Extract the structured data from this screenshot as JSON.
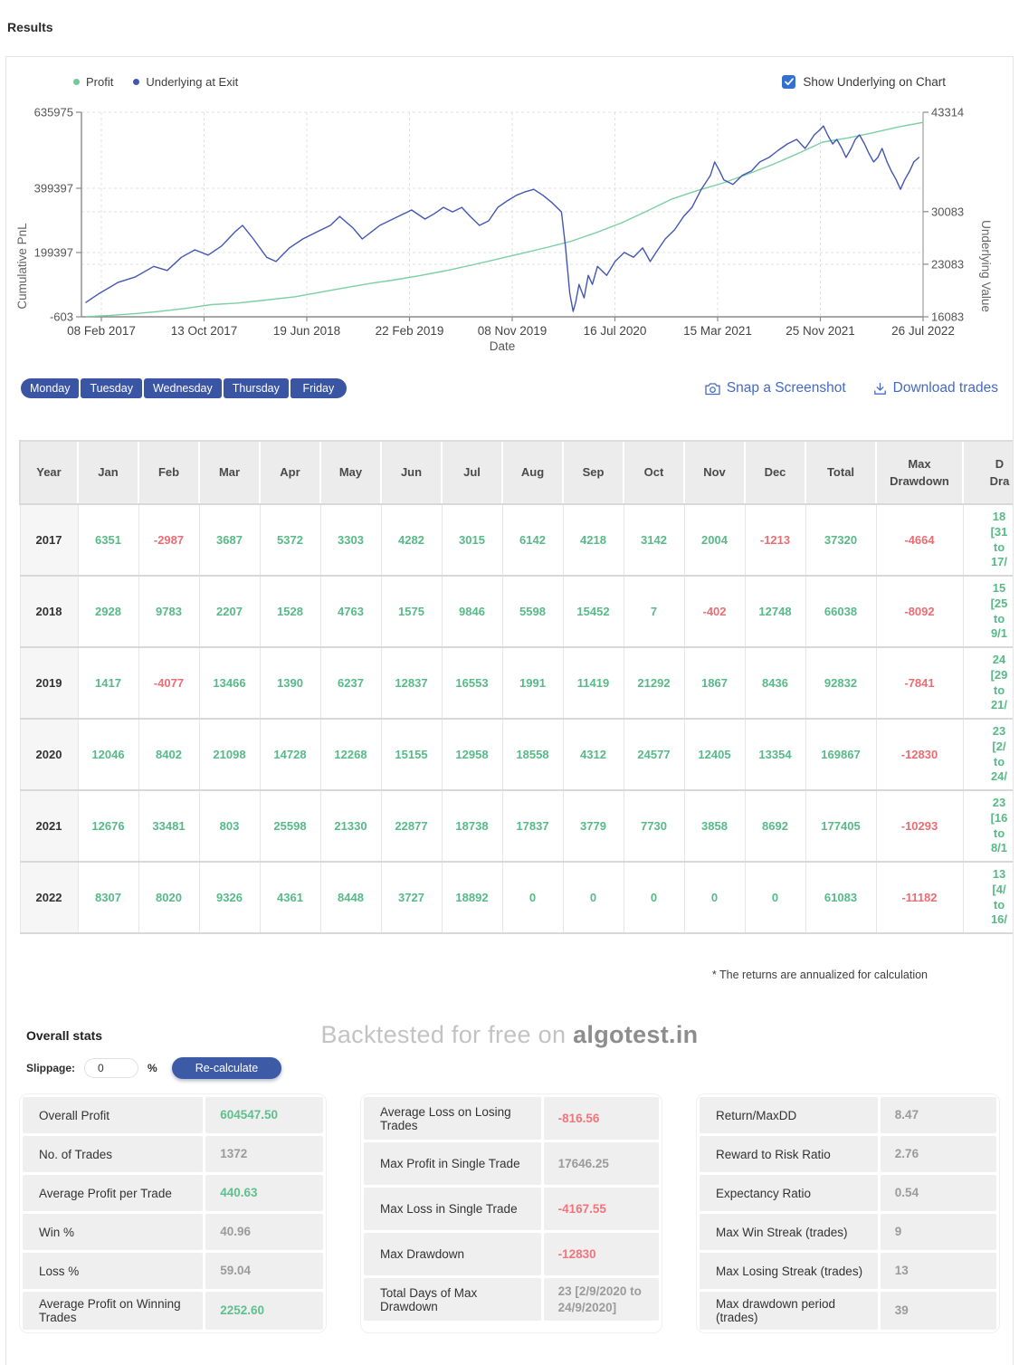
{
  "page": {
    "title": "Results"
  },
  "chart": {
    "legend": [
      {
        "label": "Profit",
        "color": "#6fcb97"
      },
      {
        "label": "Underlying at Exit",
        "color": "#4357b2"
      }
    ],
    "checkbox_label": "Show Underlying on Chart",
    "y_left": {
      "title": "Cumulative PnL",
      "ticks": [
        "635975",
        "399397",
        "199397",
        "-603"
      ]
    },
    "y_right": {
      "title": "Underlying Value",
      "ticks": [
        "43314",
        "30083",
        "23083",
        "16083"
      ]
    },
    "x": {
      "title": "Date",
      "ticks": [
        "08 Feb 2017",
        "13 Oct 2017",
        "19 Jun 2018",
        "22 Feb 2019",
        "08 Nov 2019",
        "16 Jul 2020",
        "15 Mar 2021",
        "25 Nov 2021",
        "26 Jul 2022"
      ]
    }
  },
  "chart_data": {
    "type": "line",
    "title": "",
    "xlabel": "Date",
    "x_tick_labels": [
      "08 Feb 2017",
      "13 Oct 2017",
      "19 Jun 2018",
      "22 Feb 2019",
      "08 Nov 2019",
      "16 Jul 2020",
      "15 Mar 2021",
      "25 Nov 2021",
      "26 Jul 2022"
    ],
    "y_left_label": "Cumulative PnL",
    "y_right_label": "Underlying Value",
    "y_left_range": [
      -603,
      635975
    ],
    "y_right_range": [
      16083,
      43314
    ],
    "grid": true,
    "legend_position": "top-left",
    "series": [
      {
        "name": "Profit",
        "axis": "left",
        "color": "#7bcfa2",
        "points": [
          [
            0,
            0
          ],
          [
            0.03,
            4000
          ],
          [
            0.06,
            9500
          ],
          [
            0.09,
            17000
          ],
          [
            0.12,
            26000
          ],
          [
            0.15,
            37300
          ],
          [
            0.18,
            42000
          ],
          [
            0.21,
            50000
          ],
          [
            0.25,
            62000
          ],
          [
            0.28,
            76000
          ],
          [
            0.31,
            90000
          ],
          [
            0.34,
            103400
          ],
          [
            0.37,
            115000
          ],
          [
            0.4,
            128000
          ],
          [
            0.43,
            143000
          ],
          [
            0.46,
            160000
          ],
          [
            0.49,
            178000
          ],
          [
            0.52,
            196200
          ],
          [
            0.55,
            215000
          ],
          [
            0.58,
            235000
          ],
          [
            0.61,
            262000
          ],
          [
            0.64,
            292000
          ],
          [
            0.67,
            328000
          ],
          [
            0.7,
            366000
          ],
          [
            0.73,
            392000
          ],
          [
            0.76,
            415000
          ],
          [
            0.79,
            443000
          ],
          [
            0.82,
            473000
          ],
          [
            0.85,
            507000
          ],
          [
            0.88,
            543000
          ],
          [
            0.91,
            556000
          ],
          [
            0.94,
            572000
          ],
          [
            0.97,
            590000
          ],
          [
            1,
            604547
          ]
        ]
      },
      {
        "name": "Underlying at Exit",
        "axis": "right",
        "color": "#4357b2",
        "points": [
          [
            0,
            18000
          ],
          [
            0.016,
            19200
          ],
          [
            0.038,
            20650
          ],
          [
            0.059,
            21400
          ],
          [
            0.081,
            22800
          ],
          [
            0.097,
            22250
          ],
          [
            0.114,
            24000
          ],
          [
            0.13,
            25000
          ],
          [
            0.146,
            24300
          ],
          [
            0.162,
            25500
          ],
          [
            0.178,
            27400
          ],
          [
            0.187,
            28250
          ],
          [
            0.2,
            26450
          ],
          [
            0.216,
            24000
          ],
          [
            0.227,
            23450
          ],
          [
            0.243,
            25250
          ],
          [
            0.259,
            26450
          ],
          [
            0.276,
            27400
          ],
          [
            0.292,
            28250
          ],
          [
            0.303,
            29450
          ],
          [
            0.319,
            27900
          ],
          [
            0.33,
            26450
          ],
          [
            0.351,
            28250
          ],
          [
            0.373,
            29450
          ],
          [
            0.389,
            30300
          ],
          [
            0.405,
            29100
          ],
          [
            0.416,
            29800
          ],
          [
            0.427,
            30650
          ],
          [
            0.438,
            30050
          ],
          [
            0.449,
            30650
          ],
          [
            0.459,
            29450
          ],
          [
            0.47,
            28250
          ],
          [
            0.481,
            28850
          ],
          [
            0.492,
            30650
          ],
          [
            0.503,
            31500
          ],
          [
            0.514,
            32250
          ],
          [
            0.524,
            32700
          ],
          [
            0.535,
            33050
          ],
          [
            0.546,
            32250
          ],
          [
            0.557,
            31250
          ],
          [
            0.568,
            30050
          ],
          [
            0.573,
            25250
          ],
          [
            0.578,
            19200
          ],
          [
            0.582,
            16800
          ],
          [
            0.585,
            18000
          ],
          [
            0.589,
            20400
          ],
          [
            0.595,
            18600
          ],
          [
            0.6,
            21600
          ],
          [
            0.605,
            20400
          ],
          [
            0.611,
            22800
          ],
          [
            0.622,
            21600
          ],
          [
            0.632,
            23450
          ],
          [
            0.643,
            24650
          ],
          [
            0.654,
            24000
          ],
          [
            0.665,
            25250
          ],
          [
            0.674,
            23450
          ],
          [
            0.681,
            24650
          ],
          [
            0.692,
            26450
          ],
          [
            0.703,
            27650
          ],
          [
            0.714,
            29450
          ],
          [
            0.724,
            30650
          ],
          [
            0.735,
            33050
          ],
          [
            0.746,
            34900
          ],
          [
            0.751,
            36700
          ],
          [
            0.757,
            35500
          ],
          [
            0.762,
            34300
          ],
          [
            0.773,
            33700
          ],
          [
            0.784,
            34900
          ],
          [
            0.795,
            35500
          ],
          [
            0.805,
            36700
          ],
          [
            0.816,
            37300
          ],
          [
            0.827,
            38250
          ],
          [
            0.838,
            39100
          ],
          [
            0.849,
            39700
          ],
          [
            0.859,
            38500
          ],
          [
            0.865,
            39450
          ],
          [
            0.87,
            40300
          ],
          [
            0.876,
            40900
          ],
          [
            0.881,
            41500
          ],
          [
            0.886,
            40300
          ],
          [
            0.892,
            39100
          ],
          [
            0.897,
            39700
          ],
          [
            0.903,
            38500
          ],
          [
            0.908,
            37300
          ],
          [
            0.914,
            38500
          ],
          [
            0.919,
            39700
          ],
          [
            0.924,
            40300
          ],
          [
            0.93,
            39100
          ],
          [
            0.935,
            37900
          ],
          [
            0.941,
            36700
          ],
          [
            0.946,
            37300
          ],
          [
            0.951,
            38500
          ],
          [
            0.957,
            36700
          ],
          [
            0.962,
            35500
          ],
          [
            0.968,
            34300
          ],
          [
            0.973,
            33050
          ],
          [
            0.978,
            34300
          ],
          [
            0.984,
            35500
          ],
          [
            0.989,
            36700
          ],
          [
            0.995,
            37300
          ]
        ]
      }
    ]
  },
  "filters": {
    "days": [
      "Monday",
      "Tuesday",
      "Wednesday",
      "Thursday",
      "Friday"
    ]
  },
  "actions": {
    "snap": "Snap a Screenshot",
    "download": "Download trades"
  },
  "monthly_table": {
    "headers": [
      "Year",
      "Jan",
      "Feb",
      "Mar",
      "Apr",
      "May",
      "Jun",
      "Jul",
      "Aug",
      "Sep",
      "Oct",
      "Nov",
      "Dec",
      "Total",
      "Max Drawdown",
      "D\nDra"
    ],
    "rows": [
      {
        "year": "2017",
        "values": [
          "6351",
          "-2987",
          "3687",
          "5372",
          "3303",
          "4282",
          "3015",
          "6142",
          "4218",
          "3142",
          "2004",
          "-1213"
        ],
        "total": "37320",
        "max_dd": "-4664",
        "dd_period": "18\n[31\nto\n17/"
      },
      {
        "year": "2018",
        "values": [
          "2928",
          "9783",
          "2207",
          "1528",
          "4763",
          "1575",
          "9846",
          "5598",
          "15452",
          "7",
          "-402",
          "12748"
        ],
        "total": "66038",
        "max_dd": "-8092",
        "dd_period": "15\n[25\nto\n9/1"
      },
      {
        "year": "2019",
        "values": [
          "1417",
          "-4077",
          "13466",
          "1390",
          "6237",
          "12837",
          "16553",
          "1991",
          "11419",
          "21292",
          "1867",
          "8436"
        ],
        "total": "92832",
        "max_dd": "-7841",
        "dd_period": "24\n[29\nto\n21/"
      },
      {
        "year": "2020",
        "values": [
          "12046",
          "8402",
          "21098",
          "14728",
          "12268",
          "15155",
          "12958",
          "18558",
          "4312",
          "24577",
          "12405",
          "13354"
        ],
        "total": "169867",
        "max_dd": "-12830",
        "dd_period": "23\n[2/\nto\n24/"
      },
      {
        "year": "2021",
        "values": [
          "12676",
          "33481",
          "803",
          "25598",
          "21330",
          "22877",
          "18738",
          "17837",
          "3779",
          "7730",
          "3858",
          "8692"
        ],
        "total": "177405",
        "max_dd": "-10293",
        "dd_period": "23\n[16\nto\n8/1"
      },
      {
        "year": "2022",
        "values": [
          "8307",
          "8020",
          "9326",
          "4361",
          "8448",
          "3727",
          "18892",
          "0",
          "0",
          "0",
          "0",
          "0"
        ],
        "total": "61083",
        "max_dd": "-11182",
        "dd_period": "13\n[4/\nto\n16/"
      }
    ]
  },
  "note": "* The returns are annualized for calculation",
  "stats_header": "Overall stats",
  "watermark": {
    "prefix": "Backtested for free on ",
    "brand": "algotest.in"
  },
  "slippage": {
    "label": "Slippage:",
    "value": "0",
    "unit": "%",
    "button": "Re-calculate"
  },
  "stats": {
    "cards": [
      {
        "rows": [
          {
            "label": "Overall Profit",
            "value": "604547.50",
            "tone": "green"
          },
          {
            "label": "No. of Trades",
            "value": "1372",
            "tone": "gray"
          },
          {
            "label": "Average Profit per Trade",
            "value": "440.63",
            "tone": "green"
          },
          {
            "label": "Win %",
            "value": "40.96",
            "tone": "gray"
          },
          {
            "label": "Loss %",
            "value": "59.04",
            "tone": "gray"
          },
          {
            "label": "Average Profit on Winning Trades",
            "value": "2252.60",
            "tone": "green"
          }
        ]
      },
      {
        "rows": [
          {
            "label": "Average Loss on Losing Trades",
            "value": "-816.56",
            "tone": "red"
          },
          {
            "label": "Max Profit in Single Trade",
            "value": "17646.25",
            "tone": "gray"
          },
          {
            "label": "Max Loss in Single Trade",
            "value": "-4167.55",
            "tone": "red"
          },
          {
            "label": "Max Drawdown",
            "value": "-12830",
            "tone": "red"
          },
          {
            "label": "Total Days of Max Drawdown",
            "value": "23 [2/9/2020 to 24/9/2020]",
            "tone": "gray"
          }
        ]
      },
      {
        "rows": [
          {
            "label": "Return/MaxDD",
            "value": "8.47",
            "tone": "gray"
          },
          {
            "label": "Reward to Risk Ratio",
            "value": "2.76",
            "tone": "gray"
          },
          {
            "label": "Expectancy Ratio",
            "value": "0.54",
            "tone": "gray"
          },
          {
            "label": "Max Win Streak (trades)",
            "value": "9",
            "tone": "gray"
          },
          {
            "label": "Max Losing Streak (trades)",
            "value": "13",
            "tone": "gray"
          },
          {
            "label": "Max drawdown period (trades)",
            "value": "39",
            "tone": "gray"
          }
        ]
      }
    ]
  }
}
